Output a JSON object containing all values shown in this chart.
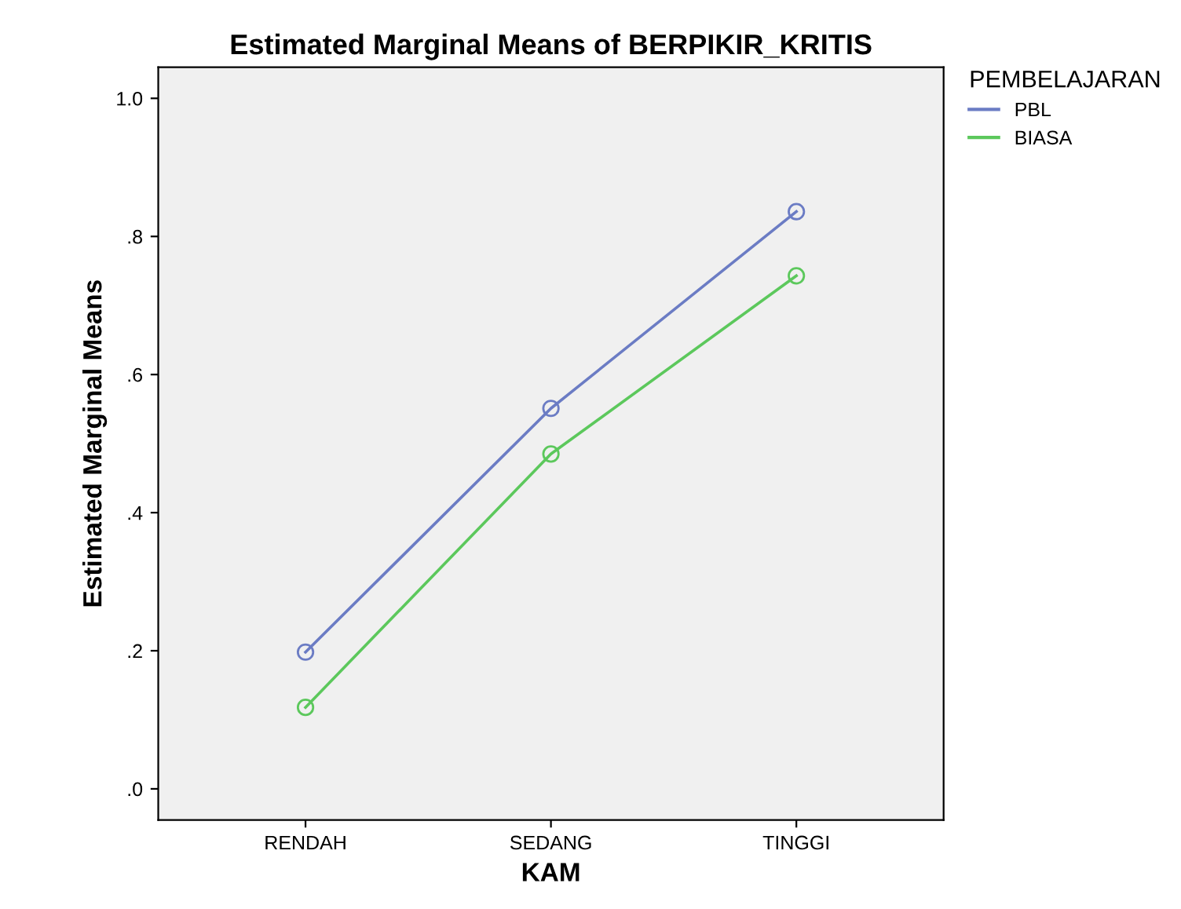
{
  "chart_data": {
    "type": "line",
    "title": "Estimated Marginal Means of BERPIKIR_KRITIS",
    "xlabel": "KAM",
    "ylabel": "Estimated Marginal Means",
    "legend_title": "PEMBELAJARAN",
    "categories": [
      "RENDAH",
      "SEDANG",
      "TINGGI"
    ],
    "series": [
      {
        "name": "PBL",
        "color": "#6b7cc4",
        "values": [
          0.198,
          0.551,
          0.836
        ]
      },
      {
        "name": "BIASA",
        "color": "#5cc85c",
        "values": [
          0.118,
          0.485,
          0.743
        ]
      }
    ],
    "ylim": [
      -0.045,
      1.045
    ],
    "yticks": [
      {
        "value": 0,
        "label": ".0"
      },
      {
        "value": 0.2,
        "label": ".2"
      },
      {
        "value": 0.4,
        "label": ".4"
      },
      {
        "value": 0.6,
        "label": ".6"
      },
      {
        "value": 0.8,
        "label": ".8"
      },
      {
        "value": 1.0,
        "label": "1.0"
      }
    ],
    "grid": false,
    "legend": "top right",
    "marker": "circle",
    "line_style": "solid"
  }
}
